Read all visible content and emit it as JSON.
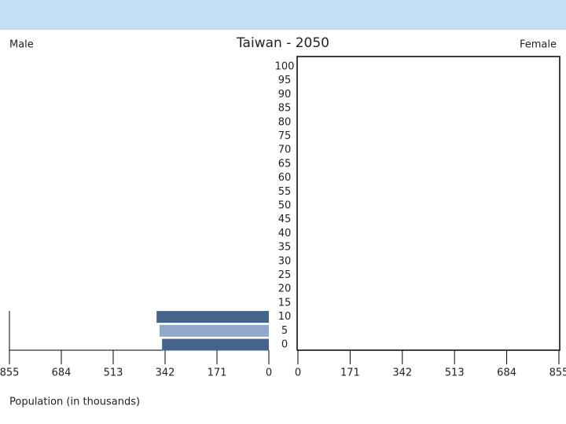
{
  "chart_data": {
    "type": "pyramid",
    "title": "Taiwan - 2050",
    "left_label": "Male",
    "right_label": "Female",
    "x_label": "Population (in thousands)",
    "categories": [
      "0",
      "5",
      "10",
      "15",
      "20",
      "25",
      "30",
      "35",
      "40",
      "45",
      "50",
      "55",
      "60",
      "65",
      "70",
      "75",
      "80",
      "85",
      "90",
      "95",
      "100"
    ],
    "series": [
      {
        "name": "Male",
        "colors": [
          "#46648a",
          "#8fa8cc"
        ],
        "values": [
          352,
          360,
          370,
          null,
          null,
          null,
          null,
          null,
          null,
          null,
          null,
          null,
          null,
          null,
          null,
          null,
          null,
          null,
          null,
          null,
          null
        ]
      }
    ],
    "xlim": [
      0,
      855
    ],
    "xticks": [
      0,
      171,
      342,
      513,
      684,
      855
    ]
  }
}
